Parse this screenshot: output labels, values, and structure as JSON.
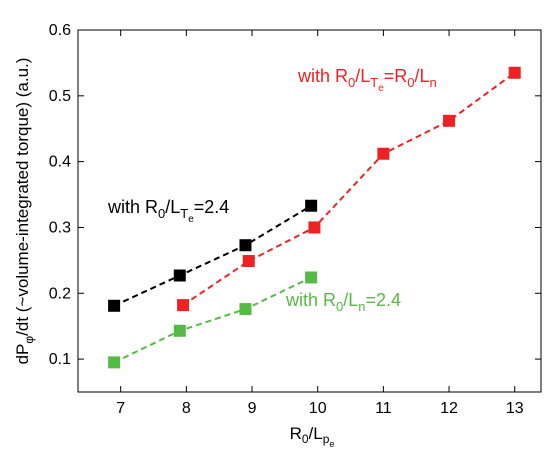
{
  "chart_data": {
    "type": "line",
    "xlabel": {
      "main": "R",
      "sub1": "0",
      "mid": "/L",
      "sub2": "p",
      "sub3": "e"
    },
    "ylabel": {
      "main": "dP",
      "sub": "φ",
      "rest": "/dt (~volume-integrated torque) (a.u.)"
    },
    "xlim": [
      6.35,
      13.4
    ],
    "ylim": [
      0.05,
      0.6
    ],
    "xticks": [
      "7",
      "8",
      "9",
      "10",
      "11",
      "12",
      "13"
    ],
    "yticks": [
      "0.1",
      "0.2",
      "0.3",
      "0.4",
      "0.5",
      "0.6"
    ],
    "grid": false,
    "series": [
      {
        "name": "with R0/LTe=2.4",
        "color": "#000000",
        "x": [
          6.9,
          7.9,
          8.9,
          9.9
        ],
        "y": [
          0.181,
          0.227,
          0.273,
          0.333
        ]
      },
      {
        "name": "with R0/LTe=R0/Ln",
        "color": "#ee2222",
        "x": [
          7.95,
          8.95,
          9.95,
          11.0,
          12.0,
          13.0
        ],
        "y": [
          0.182,
          0.249,
          0.3,
          0.412,
          0.462,
          0.535
        ]
      },
      {
        "name": "with R0/Ln=2.4",
        "color": "#55bb44",
        "x": [
          6.9,
          7.9,
          8.9,
          9.9
        ],
        "y": [
          0.095,
          0.143,
          0.176,
          0.224
        ]
      }
    ],
    "annotations": {
      "black": {
        "a": "with R",
        "b": "0",
        "c": "/L",
        "d": "T",
        "e": "e",
        "f": "=2.4"
      },
      "red": {
        "a": "with R",
        "b": "0",
        "c": "/L",
        "d": "T",
        "e": "e",
        "f": "=R",
        "g": "0",
        "h": "/L",
        "i": "n"
      },
      "green": {
        "a": "with R",
        "b": "0",
        "c": "/L",
        "d": "n",
        "e": "=2.4"
      }
    }
  }
}
